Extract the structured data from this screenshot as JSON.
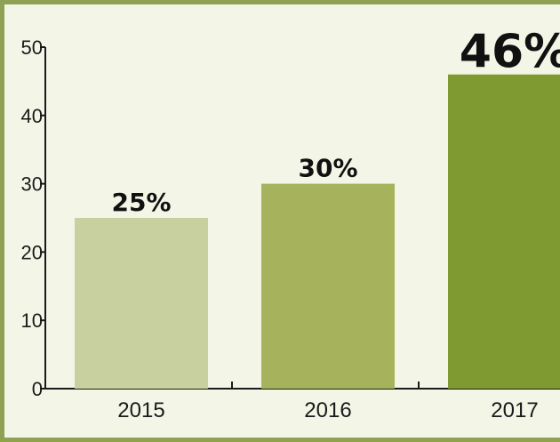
{
  "chart_data": {
    "type": "bar",
    "categories": [
      "2015",
      "2016",
      "2017"
    ],
    "values": [
      25,
      30,
      46
    ],
    "data_labels": [
      "25%",
      "30%",
      "46%"
    ],
    "ylim": [
      0,
      50
    ],
    "yticks": [
      0,
      10,
      20,
      30,
      40,
      50
    ],
    "grid": false,
    "colors": [
      "#c9d09f",
      "#a6b35c",
      "#7f9a30"
    ],
    "background": "#f3f6e7",
    "frame_color": "#8fa253"
  }
}
